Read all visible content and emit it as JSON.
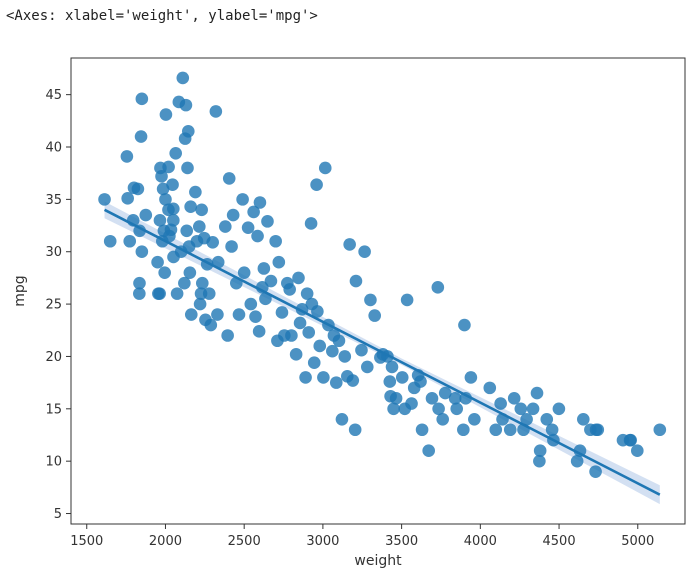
{
  "output_repr": "<Axes: xlabel='weight', ylabel='mpg'>",
  "chart_data": {
    "type": "scatter",
    "title": "",
    "xlabel": "weight",
    "ylabel": "mpg",
    "xlim": [
      1400,
      5300
    ],
    "ylim": [
      4,
      48.5
    ],
    "xticks": [
      1500,
      2000,
      2500,
      3000,
      3500,
      4000,
      4500,
      5000
    ],
    "yticks": [
      5,
      10,
      15,
      20,
      25,
      30,
      35,
      40,
      45
    ],
    "grid": false,
    "legend": "none",
    "colors": {
      "points": "#1f77b4",
      "line": "#1f77b4",
      "ci_band": "#aec7e8",
      "axes": "#333333"
    },
    "regression": {
      "x": [
        1613,
        5140
      ],
      "y": [
        34.0,
        6.8
      ]
    },
    "ci_band": {
      "x": [
        1613,
        3500,
        5140
      ],
      "lower": [
        33.2,
        19.2,
        5.9
      ],
      "upper": [
        34.8,
        19.8,
        7.7
      ]
    },
    "points": [
      [
        1613,
        35
      ],
      [
        1649,
        31
      ],
      [
        1755,
        39.1
      ],
      [
        1760,
        35.1
      ],
      [
        1773,
        31
      ],
      [
        1795,
        33
      ],
      [
        1800,
        36.1
      ],
      [
        1825,
        36
      ],
      [
        1834,
        26
      ],
      [
        1835,
        27
      ],
      [
        1836,
        32
      ],
      [
        1845,
        41
      ],
      [
        1850,
        44.6
      ],
      [
        1850,
        30
      ],
      [
        1875,
        33.5
      ],
      [
        1950,
        29
      ],
      [
        1955,
        26
      ],
      [
        1963,
        26
      ],
      [
        1965,
        33
      ],
      [
        1968,
        38
      ],
      [
        1975,
        37.2
      ],
      [
        1980,
        31
      ],
      [
        1985,
        36
      ],
      [
        1990,
        32
      ],
      [
        1995,
        28
      ],
      [
        2000,
        35
      ],
      [
        2003,
        43.1
      ],
      [
        2019,
        34
      ],
      [
        2020,
        38.1
      ],
      [
        2025,
        31.5
      ],
      [
        2035,
        32.1
      ],
      [
        2045,
        36.4
      ],
      [
        2050,
        33
      ],
      [
        2050,
        34.1
      ],
      [
        2051,
        29.5
      ],
      [
        2065,
        39.4
      ],
      [
        2074,
        26
      ],
      [
        2085,
        44.3
      ],
      [
        2100,
        30
      ],
      [
        2110,
        46.6
      ],
      [
        2120,
        27
      ],
      [
        2125,
        40.8
      ],
      [
        2130,
        44.0
      ],
      [
        2135,
        32
      ],
      [
        2140,
        38.0
      ],
      [
        2145,
        41.5
      ],
      [
        2150,
        30.5
      ],
      [
        2155,
        28
      ],
      [
        2160,
        34.3
      ],
      [
        2164,
        24
      ],
      [
        2190,
        35.7
      ],
      [
        2200,
        31
      ],
      [
        2215,
        32.4
      ],
      [
        2220,
        25
      ],
      [
        2226,
        26
      ],
      [
        2230,
        34
      ],
      [
        2234,
        27
      ],
      [
        2246,
        31.3
      ],
      [
        2254,
        23.5
      ],
      [
        2265,
        28.8
      ],
      [
        2278,
        26
      ],
      [
        2288,
        23
      ],
      [
        2300,
        30.9
      ],
      [
        2320,
        43.4
      ],
      [
        2330,
        24
      ],
      [
        2335,
        29
      ],
      [
        2380,
        32.4
      ],
      [
        2395,
        22
      ],
      [
        2405,
        37
      ],
      [
        2420,
        30.5
      ],
      [
        2430,
        33.5
      ],
      [
        2450,
        27
      ],
      [
        2467,
        24
      ],
      [
        2490,
        35
      ],
      [
        2500,
        28
      ],
      [
        2525,
        32.3
      ],
      [
        2542,
        25
      ],
      [
        2560,
        33.8
      ],
      [
        2572,
        23.8
      ],
      [
        2585,
        31.5
      ],
      [
        2595,
        22.4
      ],
      [
        2600,
        34.7
      ],
      [
        2615,
        26.6
      ],
      [
        2625,
        28.4
      ],
      [
        2635,
        25.5
      ],
      [
        2648,
        32.9
      ],
      [
        2670,
        27.2
      ],
      [
        2700,
        31
      ],
      [
        2711,
        21.5
      ],
      [
        2720,
        29
      ],
      [
        2740,
        24.2
      ],
      [
        2755,
        22
      ],
      [
        2774,
        27
      ],
      [
        2789,
        26.4
      ],
      [
        2800,
        22
      ],
      [
        2830,
        20.2
      ],
      [
        2845,
        27.5
      ],
      [
        2855,
        23.2
      ],
      [
        2868,
        24.5
      ],
      [
        2890,
        18
      ],
      [
        2900,
        26
      ],
      [
        2910,
        22.3
      ],
      [
        2925,
        32.7
      ],
      [
        2930,
        25
      ],
      [
        2945,
        19.4
      ],
      [
        2960,
        36.4
      ],
      [
        2965,
        24.3
      ],
      [
        2980,
        21
      ],
      [
        3003,
        18
      ],
      [
        3015,
        38
      ],
      [
        3035,
        23
      ],
      [
        3060,
        20.5
      ],
      [
        3070,
        22
      ],
      [
        3085,
        17.5
      ],
      [
        3102,
        21.5
      ],
      [
        3121,
        14
      ],
      [
        3139,
        20
      ],
      [
        3155,
        18.1
      ],
      [
        3170,
        30.7
      ],
      [
        3190,
        17.7
      ],
      [
        3205,
        13
      ],
      [
        3210,
        27.2
      ],
      [
        3245,
        20.6
      ],
      [
        3265,
        30
      ],
      [
        3282,
        19
      ],
      [
        3302,
        25.4
      ],
      [
        3329,
        23.9
      ],
      [
        3365,
        19.9
      ],
      [
        3381,
        20.2
      ],
      [
        3410,
        20
      ],
      [
        3425,
        17.6
      ],
      [
        3430,
        16.2
      ],
      [
        3439,
        19
      ],
      [
        3449,
        15
      ],
      [
        3465,
        16
      ],
      [
        3504,
        18
      ],
      [
        3520,
        15
      ],
      [
        3535,
        25.4
      ],
      [
        3563,
        15.5
      ],
      [
        3580,
        17
      ],
      [
        3605,
        18.2
      ],
      [
        3620,
        17.6
      ],
      [
        3630,
        13
      ],
      [
        3672,
        11
      ],
      [
        3693,
        16
      ],
      [
        3730,
        26.6
      ],
      [
        3735,
        15
      ],
      [
        3761,
        14
      ],
      [
        3777,
        16.5
      ],
      [
        3840,
        16
      ],
      [
        3850,
        15
      ],
      [
        3892,
        13
      ],
      [
        3899,
        23
      ],
      [
        3907,
        16
      ],
      [
        3940,
        18
      ],
      [
        3962,
        14
      ],
      [
        4060,
        17
      ],
      [
        4098,
        13
      ],
      [
        4129,
        15.5
      ],
      [
        4141,
        14
      ],
      [
        4190,
        13
      ],
      [
        4215,
        16
      ],
      [
        4257,
        15
      ],
      [
        4274,
        13
      ],
      [
        4294,
        14
      ],
      [
        4335,
        15
      ],
      [
        4360,
        16.5
      ],
      [
        4375,
        10
      ],
      [
        4380,
        11
      ],
      [
        4422,
        14
      ],
      [
        4456,
        13
      ],
      [
        4464,
        12
      ],
      [
        4499,
        15
      ],
      [
        4615,
        10
      ],
      [
        4633,
        11
      ],
      [
        4654,
        14
      ],
      [
        4699,
        13
      ],
      [
        4732,
        9
      ],
      [
        4735,
        13
      ],
      [
        4746,
        13
      ],
      [
        4906,
        12
      ],
      [
        4951,
        12
      ],
      [
        4955,
        12
      ],
      [
        4997,
        11
      ],
      [
        5140,
        13
      ]
    ]
  }
}
